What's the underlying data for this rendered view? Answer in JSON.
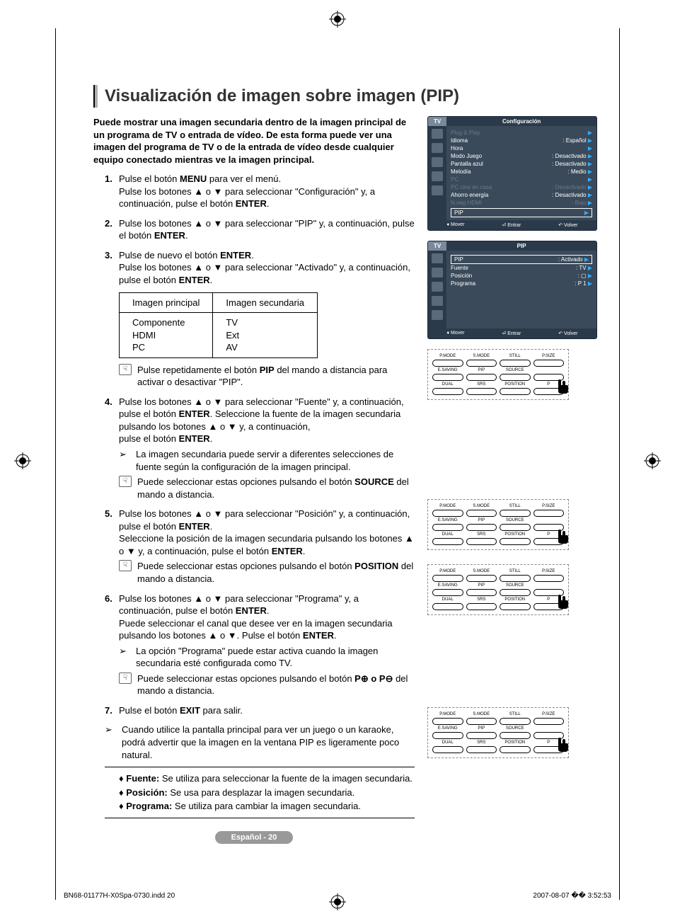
{
  "title": "Visualización de imagen sobre imagen (PIP)",
  "intro": "Puede mostrar una imagen secundaria dentro de la imagen principal de un programa de TV o entrada de vídeo. De esta forma puede ver una imagen del programa de TV o de la entrada de vídeo desde cualquier equipo conectado mientras ve la imagen principal.",
  "steps": {
    "s1": {
      "num": "1.",
      "a": "Pulse el botón ",
      "b": "MENU",
      "c": " para ver el menú.",
      "d": "Pulse los botones ▲ o ▼ para seleccionar \"Configuración\" y, a continuación, pulse el botón ",
      "e": "ENTER",
      "f": "."
    },
    "s2": {
      "num": "2.",
      "a": "Pulse los botones ▲ o ▼ para seleccionar \"PIP\" y, a continuación, pulse el botón ",
      "b": "ENTER",
      "c": "."
    },
    "s3": {
      "num": "3.",
      "a": "Pulse de nuevo el botón ",
      "b": "ENTER",
      "c": ".",
      "d": "Pulse los botones ▲ o ▼ para seleccionar \"Activado\" y, a continuación, pulse el botón ",
      "e": "ENTER",
      "f": "."
    },
    "s4": {
      "num": "4.",
      "a": "Pulse los botones ▲ o ▼ para seleccionar \"Fuente\" y, a continuación, pulse el botón ",
      "b": "ENTER",
      "c": ". Seleccione la fuente de la imagen secundaria pulsando los botones ▲ o ▼ y, a continuación,",
      "d": "pulse el botón ",
      "e": "ENTER",
      "f": ".",
      "arrow": "La imagen secundaria puede servir a diferentes selecciones de fuente según la configuración de la imagen principal.",
      "note": "Puede seleccionar estas opciones pulsando el botón ",
      "noteB": "SOURCE",
      "noteC": " del mando a distancia."
    },
    "s5": {
      "num": "5.",
      "a": "Pulse los botones ▲ o ▼ para seleccionar \"Posición\" y, a continuación, pulse el botón ",
      "b": "ENTER",
      "c": ".",
      "d": "Seleccione la posición de la imagen secundaria pulsando los botones ▲ o ▼ y, a continuación, pulse el botón ",
      "e": "ENTER",
      "f": ".",
      "note": "Puede seleccionar estas opciones pulsando el botón ",
      "noteB": "POSITION",
      "noteC": " del mando a distancia."
    },
    "s6": {
      "num": "6.",
      "a": "Pulse los botones ▲ o ▼ para seleccionar \"Programa\" y, a continuación, pulse el botón ",
      "b": "ENTER",
      "c": ".",
      "d": "Puede seleccionar el canal que desee ver en la imagen secundaria pulsando los botones ▲ o ▼. Pulse el botón ",
      "e": "ENTER",
      "f": ".",
      "arrow": "La opción \"Programa\" puede estar activa cuando la imagen secundaria esté configurada como TV.",
      "note": "Puede seleccionar estas opciones pulsando el botón ",
      "noteB": "P⊕ o P⊖",
      "noteC": " del mando a distancia."
    },
    "s7": {
      "num": "7.",
      "a": "Pulse el botón ",
      "b": "EXIT",
      "c": " para salir."
    }
  },
  "finalArrow": "Cuando utilice la pantalla principal para ver un juego o un karaoke, podrá advertir que la imagen en la ventana PIP es ligeramente poco natural.",
  "table": {
    "h1": "Imagen principal",
    "h2": "Imagen secundaria",
    "c1": "Componente\nHDMI\nPC",
    "c2": "TV\nExt\nAV"
  },
  "tableNote": {
    "a": "Pulse repetidamente el botón ",
    "b": "PIP",
    "c": " del mando a distancia para activar o desactivar \"PIP\"."
  },
  "defs": {
    "d1": {
      "t": "Fuente:",
      "v": " Se utiliza para seleccionar la fuente de la imagen secundaria."
    },
    "d2": {
      "t": "Posición:",
      "v": " Se usa para desplazar la imagen secundaria."
    },
    "d3": {
      "t": "Programa:",
      "v": " Se utiliza para cambiar la imagen secundaria."
    }
  },
  "pageBadge": "Español - 20",
  "footer": {
    "left": "BN68-01177H-X0Spa-0730.indd   20",
    "right": "2007-08-07   �� 3:52:53"
  },
  "osd1": {
    "tab": "TV",
    "title": "Configuración",
    "rows": [
      {
        "l": "Plug & Play",
        "v": "",
        "dim": true
      },
      {
        "l": "Idioma",
        "v": ": Español"
      },
      {
        "l": "Hora",
        "v": ""
      },
      {
        "l": "Modo Juego",
        "v": ": Desactivado"
      },
      {
        "l": "Pantalla azul",
        "v": ": Desactivado"
      },
      {
        "l": "Melodía",
        "v": ": Medio"
      },
      {
        "l": "PC",
        "v": "",
        "dim": true
      },
      {
        "l": "PC cine en casa",
        "v": ": Desactivado",
        "dim": true
      },
      {
        "l": "Ahorro energía",
        "v": ": Desactivado"
      },
      {
        "l": "N.neg HDMI",
        "v": ": Bajo",
        "dim": true
      },
      {
        "l": "PIP",
        "v": "",
        "boxed": true
      }
    ],
    "footer": {
      "a": "Mover",
      "b": "Entrar",
      "c": "Volver"
    }
  },
  "osd2": {
    "tab": "TV",
    "title": "PIP",
    "rows": [
      {
        "l": "PIP",
        "v": ": Activado",
        "boxed": true
      },
      {
        "l": "Fuente",
        "v": ": TV"
      },
      {
        "l": "Posición",
        "v": ": ▢"
      },
      {
        "l": "Programa",
        "v": ": P 1"
      }
    ],
    "footer": {
      "a": "Mover",
      "b": "Entrar",
      "c": "Volver"
    }
  },
  "remote": {
    "labels": [
      "P.MODE",
      "S.MODE",
      "STILL",
      "P.SIZE",
      "E.SAVING",
      "PIP",
      "SOURCE",
      "",
      "DUAL",
      "SRS",
      "POSITION",
      "P"
    ]
  }
}
